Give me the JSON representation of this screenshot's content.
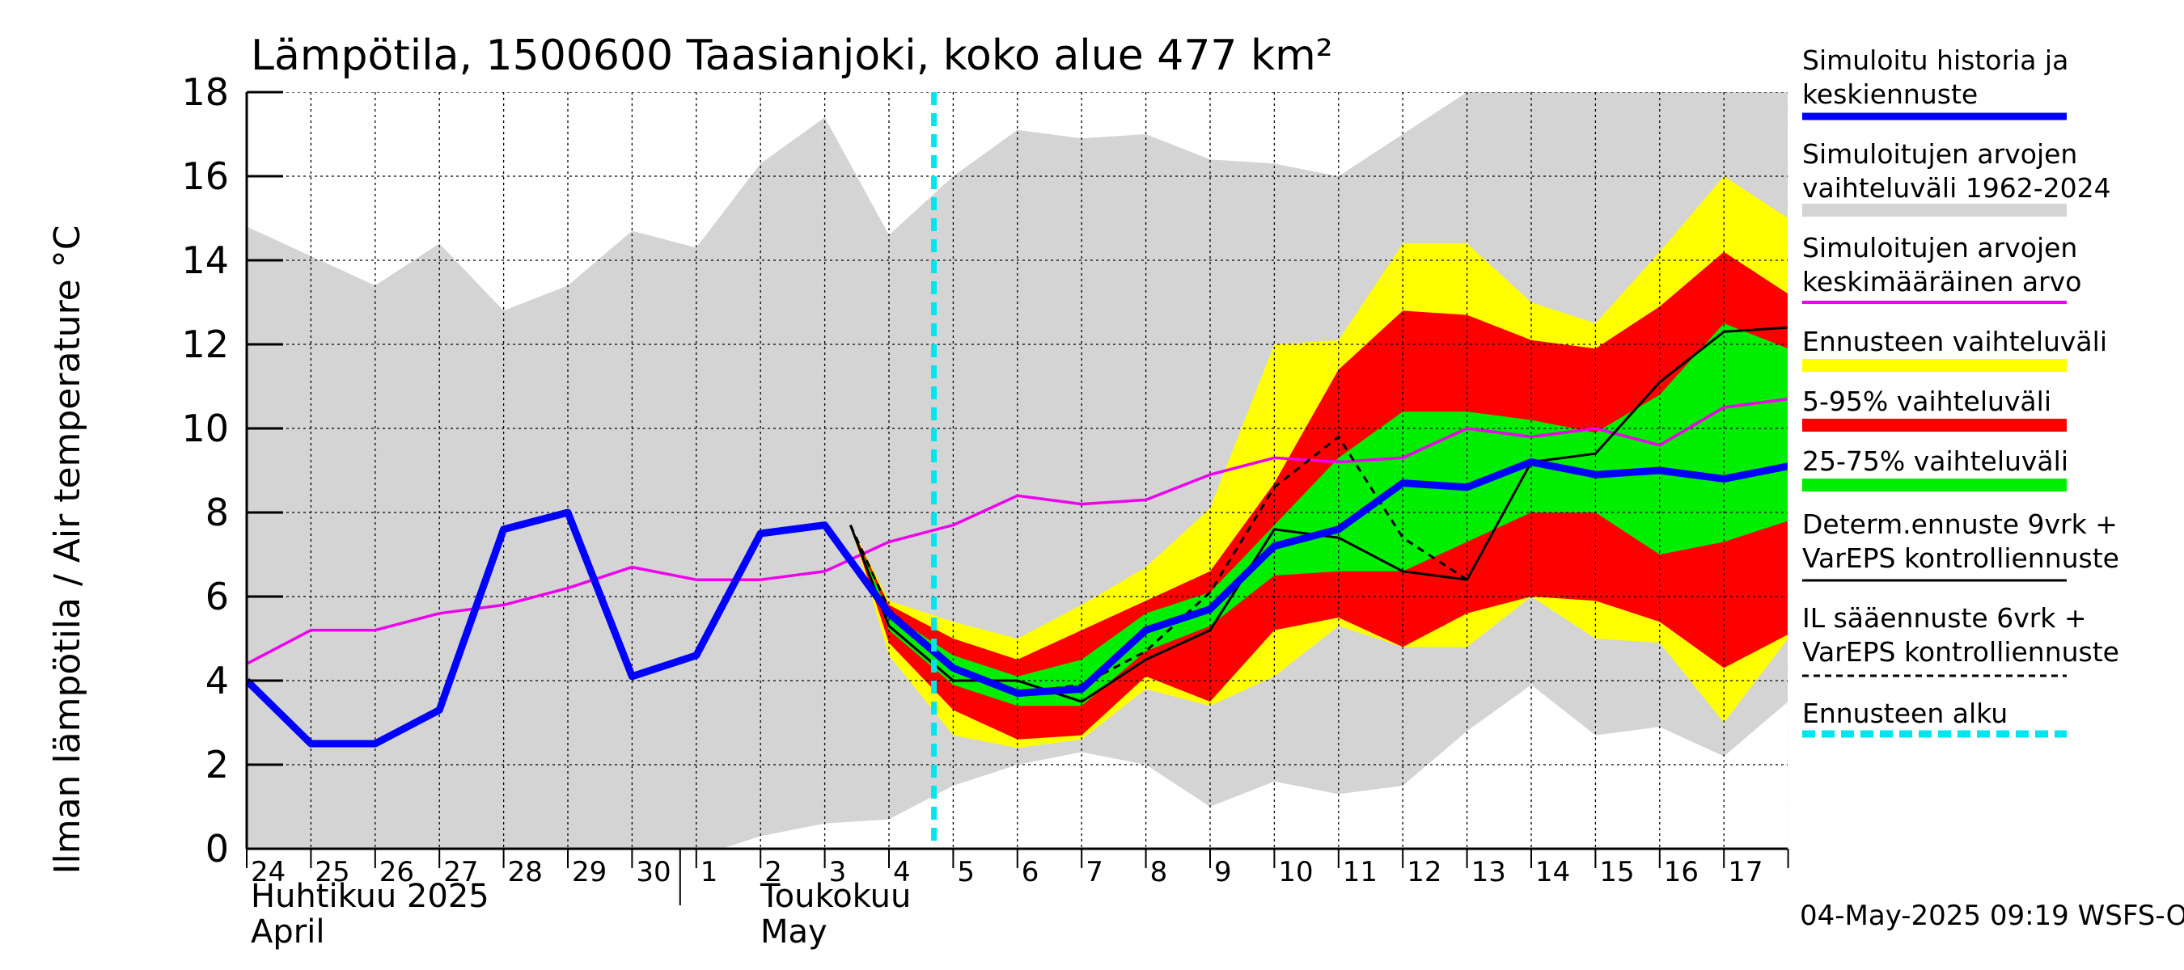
{
  "chart_data": {
    "type": "area",
    "title": "Lämpötila, 1500600 Taasianjoki, koko alue 477 km²",
    "ylabel": "Ilman lämpötila / Air temperature   °C",
    "ylim": [
      0,
      18
    ],
    "yticks": [
      0,
      2,
      4,
      6,
      8,
      10,
      12,
      14,
      16,
      18
    ],
    "grid": true,
    "legend_position": "right",
    "x_labels": [
      "24",
      "25",
      "26",
      "27",
      "28",
      "29",
      "30",
      "1",
      "2",
      "3",
      "4",
      "5",
      "6",
      "7",
      "8",
      "9",
      "10",
      "11",
      "12",
      "13",
      "14",
      "15",
      "16",
      "17"
    ],
    "month_labels": [
      {
        "line1": "Huhtikuu  2025",
        "line2": "April"
      },
      {
        "line1": "Toukokuu",
        "line2": "May"
      }
    ],
    "forecast_start_day": 10.7,
    "colors": {
      "history_range": "#d4d4d4",
      "forecast_range": "#ffff00",
      "p5_95": "#ff0000",
      "p25_75": "#00ee00",
      "median": "#0000ff",
      "mean": "#ee00ee",
      "deterministic": "#000000",
      "il_forecast": "#000000",
      "forecast_start": "#00e5ee"
    },
    "series": [
      {
        "name": "Simuloitujen arvojen vaihteluväli 1962-2024",
        "kind": "band",
        "color": "#d4d4d4",
        "x": [
          0,
          1,
          2,
          3,
          4,
          5,
          6,
          7,
          8,
          9,
          10,
          11,
          12,
          13,
          14,
          15,
          16,
          17,
          18,
          19,
          20,
          21,
          22,
          23,
          24
        ],
        "low": [
          0,
          0,
          0,
          0,
          0,
          0,
          0,
          -0.2,
          0.3,
          0.6,
          0.7,
          1.5,
          2.0,
          2.3,
          2.0,
          1.0,
          1.6,
          1.3,
          1.5,
          2.8,
          3.9,
          2.7,
          2.9,
          2.2,
          3.5
        ],
        "high": [
          14.8,
          14.1,
          13.4,
          14.4,
          12.8,
          13.4,
          14.7,
          14.3,
          16.3,
          17.4,
          14.6,
          16.0,
          17.1,
          16.9,
          17.0,
          16.4,
          16.3,
          16.0,
          17.0,
          18.0,
          18.0,
          18.0,
          18.0,
          18.0,
          18.0
        ]
      },
      {
        "name": "Ennusteen vaihteluväli",
        "kind": "band",
        "color": "#ffff00",
        "x": [
          9.4,
          10,
          11,
          12,
          13,
          14,
          15,
          16,
          17,
          18,
          19,
          20,
          21,
          22,
          23,
          24
        ],
        "low": [
          7.7,
          4.6,
          2.7,
          2.4,
          2.6,
          3.8,
          3.4,
          4.1,
          5.3,
          4.8,
          4.8,
          6.0,
          5.0,
          4.9,
          3.0,
          5.0
        ],
        "high": [
          7.7,
          5.9,
          5.4,
          5.0,
          5.8,
          6.7,
          8.1,
          12.0,
          12.1,
          14.4,
          14.4,
          13.0,
          12.5,
          14.2,
          16.0,
          15.0
        ]
      },
      {
        "name": "5-95% vaihteluväli",
        "kind": "band",
        "color": "#ff0000",
        "x": [
          9.4,
          10,
          11,
          12,
          13,
          14,
          15,
          16,
          17,
          18,
          19,
          20,
          21,
          22,
          23,
          24
        ],
        "low": [
          7.7,
          4.9,
          3.3,
          2.6,
          2.7,
          4.1,
          3.5,
          5.2,
          5.5,
          4.8,
          5.6,
          6.0,
          5.9,
          5.4,
          4.3,
          5.1
        ],
        "high": [
          7.7,
          5.8,
          5.0,
          4.5,
          5.2,
          5.9,
          6.6,
          8.7,
          11.4,
          12.8,
          12.7,
          12.1,
          11.9,
          12.9,
          14.2,
          13.2
        ]
      },
      {
        "name": "25-75% vaihteluväli",
        "kind": "band",
        "color": "#00ee00",
        "x": [
          9.4,
          10,
          11,
          12,
          13,
          14,
          15,
          16,
          17,
          18,
          19,
          20,
          21,
          22,
          23,
          24
        ],
        "low": [
          7.7,
          5.2,
          3.9,
          3.4,
          3.4,
          4.7,
          5.3,
          6.5,
          6.6,
          6.6,
          7.3,
          8.0,
          8.0,
          7.0,
          7.3,
          7.8
        ],
        "high": [
          7.7,
          5.6,
          4.6,
          4.1,
          4.5,
          5.6,
          6.1,
          7.7,
          9.3,
          10.4,
          10.4,
          10.2,
          9.9,
          10.8,
          12.5,
          11.9
        ]
      },
      {
        "name": "Simuloitujen arvojen keskimääräinen arvo",
        "kind": "line",
        "color": "#ee00ee",
        "x": [
          0,
          1,
          2,
          3,
          4,
          5,
          6,
          7,
          8,
          9,
          10,
          11,
          12,
          13,
          14,
          15,
          16,
          17,
          18,
          19,
          20,
          21,
          22,
          23,
          24
        ],
        "y": [
          4.4,
          5.2,
          5.2,
          5.6,
          5.8,
          6.2,
          6.7,
          6.4,
          6.4,
          6.6,
          7.3,
          7.7,
          8.4,
          8.2,
          8.3,
          8.9,
          9.3,
          9.2,
          9.3,
          10.0,
          9.8,
          10.0,
          9.6,
          10.5,
          10.7
        ]
      },
      {
        "name": "Determ.ennuste 9vrk + VarEPS kontrolliennuste",
        "kind": "line",
        "color": "#000000",
        "x": [
          9.4,
          10,
          11,
          12,
          13,
          14,
          15,
          16,
          17,
          18,
          19,
          20,
          21,
          22,
          23,
          24
        ],
        "y": [
          7.7,
          5.3,
          4.0,
          4.0,
          3.5,
          4.5,
          5.2,
          7.6,
          7.4,
          6.6,
          6.4,
          9.2,
          9.4,
          11.1,
          12.3,
          12.4
        ]
      },
      {
        "name": "IL sääennuste 6vrk + VarEPS kontrolliennuste",
        "kind": "dashed",
        "color": "#000000",
        "x": [
          9.4,
          10,
          11,
          12,
          13,
          14,
          15,
          16,
          17,
          18,
          19
        ],
        "y": [
          7.7,
          5.7,
          4.3,
          3.7,
          3.9,
          4.7,
          6.1,
          8.6,
          9.8,
          7.4,
          6.4
        ]
      },
      {
        "name": "Simuloitu historia ja keskiennuste",
        "kind": "line",
        "color": "#0000ff",
        "x": [
          0,
          1,
          2,
          3,
          4,
          5,
          6,
          7,
          8,
          9,
          10,
          11,
          12,
          13,
          14,
          15,
          16,
          17,
          18,
          19,
          20,
          21,
          22,
          23,
          24
        ],
        "y": [
          4.0,
          2.5,
          2.5,
          3.3,
          7.6,
          8.0,
          4.1,
          4.6,
          7.5,
          7.7,
          5.6,
          4.3,
          3.7,
          3.8,
          5.2,
          5.7,
          7.2,
          7.6,
          8.7,
          8.6,
          9.2,
          8.9,
          9.0,
          8.8,
          9.1
        ]
      }
    ]
  },
  "legend": [
    {
      "line1": "Simuloitu historia ja",
      "line2": "keskiennuste",
      "color": "#0000ff",
      "style": "thick"
    },
    {
      "line1": "Simuloitujen arvojen",
      "line2": "vaihteluväli 1962-2024",
      "color": "#d4d4d4",
      "style": "bar"
    },
    {
      "line1": "Simuloitujen arvojen",
      "line2": "keskimääräinen arvo",
      "color": "#ee00ee",
      "style": "thin"
    },
    {
      "line1": "Ennusteen vaihteluväli",
      "line2": "",
      "color": "#ffff00",
      "style": "bar"
    },
    {
      "line1": "5-95% vaihteluväli",
      "line2": "",
      "color": "#ff0000",
      "style": "bar"
    },
    {
      "line1": "25-75% vaihteluväli",
      "line2": "",
      "color": "#00ee00",
      "style": "bar"
    },
    {
      "line1": "Determ.ennuste 9vrk +",
      "line2": "VarEPS kontrolliennuste",
      "color": "#000000",
      "style": "line"
    },
    {
      "line1": "IL sääennuste 6vrk  +",
      "line2": "  VarEPS kontrolliennuste",
      "color": "#000000",
      "style": "dashed"
    },
    {
      "line1": "Ennusteen alku",
      "line2": "",
      "color": "#00e5ee",
      "style": "cyan-dashed"
    }
  ],
  "footer": "04-May-2025 09:19 WSFS-O"
}
